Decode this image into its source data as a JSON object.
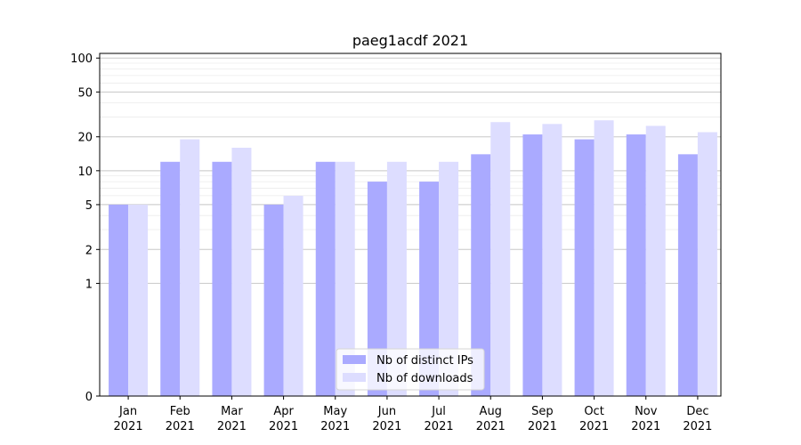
{
  "chart_data": {
    "type": "bar",
    "title": "paeg1acdf 2021",
    "xlabel": "",
    "ylabel": "",
    "yscale": "symlog",
    "ylim": [
      0,
      110
    ],
    "yticks": [
      0,
      1,
      2,
      5,
      10,
      20,
      50,
      100
    ],
    "grid": "y",
    "legend_placement": "bottom-center",
    "categories": [
      [
        "Jan",
        "2021"
      ],
      [
        "Feb",
        "2021"
      ],
      [
        "Mar",
        "2021"
      ],
      [
        "Apr",
        "2021"
      ],
      [
        "May",
        "2021"
      ],
      [
        "Jun",
        "2021"
      ],
      [
        "Jul",
        "2021"
      ],
      [
        "Aug",
        "2021"
      ],
      [
        "Sep",
        "2021"
      ],
      [
        "Oct",
        "2021"
      ],
      [
        "Nov",
        "2021"
      ],
      [
        "Dec",
        "2021"
      ]
    ],
    "series": [
      {
        "name": "Nb of distinct IPs",
        "color": "#aaaaff",
        "values": [
          5,
          12,
          12,
          5,
          12,
          8,
          8,
          14,
          21,
          19,
          21,
          14
        ]
      },
      {
        "name": "Nb of downloads",
        "color": "#ddddff",
        "values": [
          5,
          19,
          16,
          6,
          12,
          12,
          12,
          27,
          26,
          28,
          25,
          22
        ]
      }
    ]
  }
}
